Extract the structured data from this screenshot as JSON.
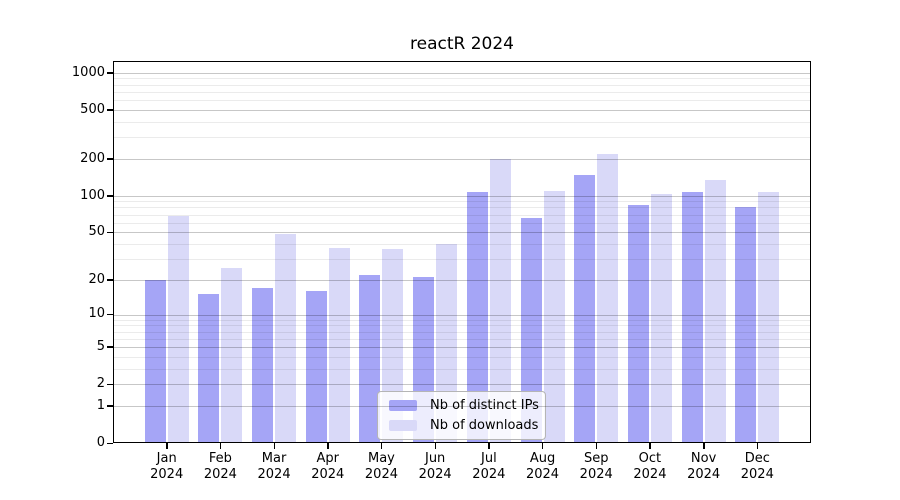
{
  "title": "reactR 2024",
  "legend": {
    "position": "lower center",
    "items": [
      {
        "label": "Nb of distinct IPs",
        "color": "#a5a5f6"
      },
      {
        "label": "Nb of downloads",
        "color": "#d9d9f8"
      }
    ]
  },
  "y_axis": {
    "scale": "log10(1+x)",
    "tick_labels": [
      "1000",
      "500",
      "200",
      "100",
      "50",
      "20",
      "10",
      "5",
      "2",
      "1",
      "0"
    ]
  },
  "x_axis": {
    "months": [
      "Jan",
      "Feb",
      "Mar",
      "Apr",
      "May",
      "Jun",
      "Jul",
      "Aug",
      "Sep",
      "Oct",
      "Nov",
      "Dec"
    ],
    "year": "2024"
  },
  "chart_data": {
    "type": "bar",
    "title": "reactR 2024",
    "xlabel": "",
    "ylabel": "",
    "categories": [
      "Jan 2024",
      "Feb 2024",
      "Mar 2024",
      "Apr 2024",
      "May 2024",
      "Jun 2024",
      "Jul 2024",
      "Aug 2024",
      "Sep 2024",
      "Oct 2024",
      "Nov 2024",
      "Dec 2024"
    ],
    "series": [
      {
        "name": "Nb of distinct IPs",
        "color": "#a5a5f6",
        "values": [
          20,
          15,
          17,
          16,
          22,
          21,
          108,
          65,
          148,
          84,
          108,
          81
        ]
      },
      {
        "name": "Nb of downloads",
        "color": "#d9d9f8",
        "values": [
          68,
          25,
          48,
          37,
          36,
          40,
          200,
          110,
          220,
          103,
          134,
          108
        ]
      }
    ],
    "yscale": "log1p",
    "ylim": [
      0,
      1230
    ],
    "y_major_ticks": [
      1000,
      500,
      200,
      100,
      50,
      20,
      10,
      5,
      2,
      1,
      0
    ],
    "y_minor_gridlines": [
      3,
      4,
      6,
      7,
      8,
      9,
      30,
      40,
      60,
      70,
      80,
      90,
      300,
      400,
      600,
      700,
      800,
      900
    ],
    "grid": true,
    "grid_over_bars": true,
    "legend_position": "lower center",
    "frame": "full box",
    "colors": {
      "background": "#ffffff",
      "spine": "#000000",
      "major_grid": "rgba(0,0,0,0.22)",
      "minor_grid": "rgba(0,0,0,0.08)"
    }
  }
}
